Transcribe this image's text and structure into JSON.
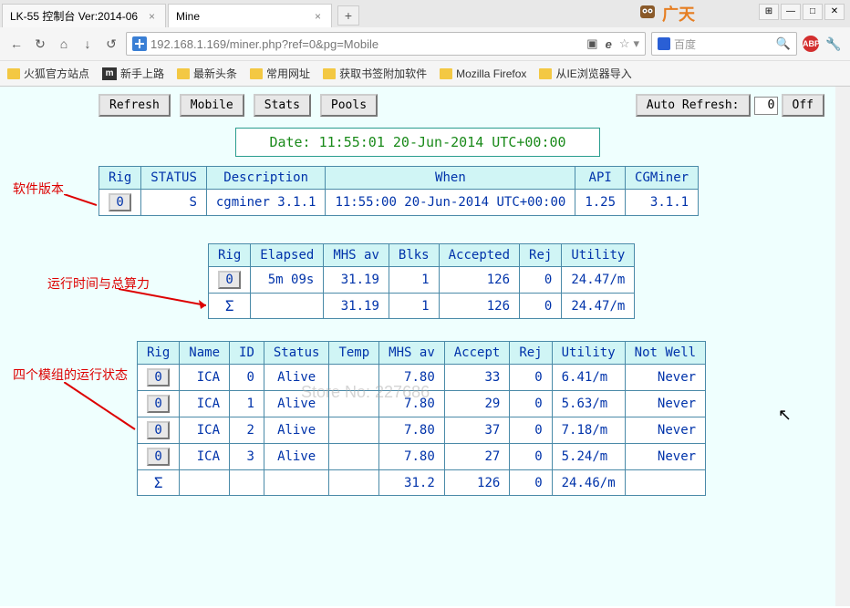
{
  "browser": {
    "tabs": [
      {
        "title": "LK-55 控制台 Ver:2014-06"
      },
      {
        "title": "Mine"
      }
    ],
    "logo_text": "广天",
    "url": "192.168.1.169/miner.php?ref=0&pg=Mobile",
    "search_placeholder": "百度",
    "bookmarks": [
      {
        "label": "火狐官方站点",
        "type": "folder"
      },
      {
        "label": "新手上路",
        "type": "m"
      },
      {
        "label": "最新头条",
        "type": "folder"
      },
      {
        "label": "常用网址",
        "type": "folder"
      },
      {
        "label": "获取书签附加软件",
        "type": "folder"
      },
      {
        "label": "Mozilla Firefox",
        "type": "folder"
      },
      {
        "label": "从IE浏览器导入",
        "type": "folder"
      }
    ]
  },
  "page": {
    "buttons": {
      "refresh": "Refresh",
      "mobile": "Mobile",
      "stats": "Stats",
      "pools": "Pools",
      "auto_refresh_label": "Auto Refresh:",
      "auto_refresh_value": "0",
      "off": "Off"
    },
    "date_text": "Date: 11:55:01 20-Jun-2014 UTC+00:00",
    "labels": {
      "l1": "软件版本",
      "l2": "运行时间与总算力",
      "l3": "四个模组的运行状态"
    },
    "watermark": "Store No: 227686",
    "table1": {
      "headers": [
        "Rig",
        "STATUS",
        "Description",
        "When",
        "API",
        "CGMiner"
      ],
      "row": {
        "rig": "0",
        "status": "S",
        "desc": "cgminer 3.1.1",
        "when": "11:55:00 20-Jun-2014 UTC+00:00",
        "api": "1.25",
        "cgminer": "3.1.1"
      }
    },
    "table2": {
      "headers": [
        "Rig",
        "Elapsed",
        "MHS av",
        "Blks",
        "Accepted",
        "Rej",
        "Utility"
      ],
      "row": {
        "rig": "0",
        "elapsed": "5m 09s",
        "mhs": "31.19",
        "blks": "1",
        "accepted": "126",
        "rej": "0",
        "utility": "24.47/m"
      },
      "sum": {
        "mhs": "31.19",
        "blks": "1",
        "accepted": "126",
        "rej": "0",
        "utility": "24.47/m"
      }
    },
    "table3": {
      "headers": [
        "Rig",
        "Name",
        "ID",
        "Status",
        "Temp",
        "MHS av",
        "Accept",
        "Rej",
        "Utility",
        "Not Well"
      ],
      "rows": [
        {
          "rig": "0",
          "name": "ICA",
          "id": "0",
          "status": "Alive",
          "temp": "",
          "mhs": "7.80",
          "accept": "33",
          "rej": "0",
          "utility": "6.41/m",
          "notwell": "Never"
        },
        {
          "rig": "0",
          "name": "ICA",
          "id": "1",
          "status": "Alive",
          "temp": "",
          "mhs": "7.80",
          "accept": "29",
          "rej": "0",
          "utility": "5.63/m",
          "notwell": "Never"
        },
        {
          "rig": "0",
          "name": "ICA",
          "id": "2",
          "status": "Alive",
          "temp": "",
          "mhs": "7.80",
          "accept": "37",
          "rej": "0",
          "utility": "7.18/m",
          "notwell": "Never"
        },
        {
          "rig": "0",
          "name": "ICA",
          "id": "3",
          "status": "Alive",
          "temp": "",
          "mhs": "7.80",
          "accept": "27",
          "rej": "0",
          "utility": "5.24/m",
          "notwell": "Never"
        }
      ],
      "sum": {
        "mhs": "31.2",
        "accept": "126",
        "rej": "0",
        "utility": "24.46/m"
      }
    }
  }
}
